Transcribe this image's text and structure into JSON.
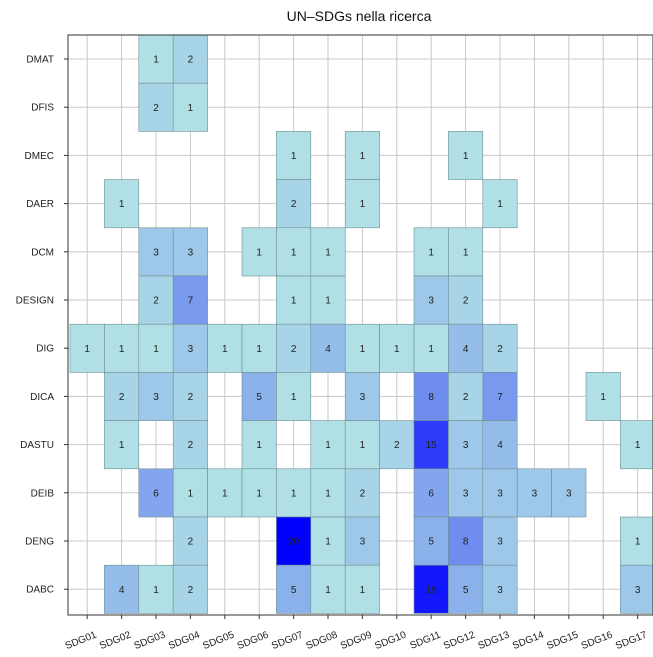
{
  "chart_data": {
    "type": "heatmap",
    "title": "UN–SDGs nella ricerca",
    "xlabel": "",
    "ylabel": "",
    "grid": true,
    "legend": "none",
    "x_categories": [
      "SDG01",
      "SDG02",
      "SDG03",
      "SDG04",
      "SDG05",
      "SDG06",
      "SDG07",
      "SDG08",
      "SDG09",
      "SDG10",
      "SDG11",
      "SDG12",
      "SDG13",
      "SDG14",
      "SDG15",
      "SDG16",
      "SDG17"
    ],
    "y_categories": [
      "DMAT",
      "DFIS",
      "DMEC",
      "DAER",
      "DCM",
      "DESIGN",
      "DIG",
      "DICA",
      "DASTU",
      "DEIB",
      "DENG",
      "DABC"
    ],
    "values": [
      [
        null,
        null,
        1,
        2,
        null,
        null,
        null,
        null,
        null,
        null,
        null,
        null,
        null,
        null,
        null,
        null,
        null
      ],
      [
        null,
        null,
        2,
        1,
        null,
        null,
        null,
        null,
        null,
        null,
        null,
        null,
        null,
        null,
        null,
        null,
        null
      ],
      [
        null,
        null,
        null,
        null,
        null,
        null,
        1,
        null,
        1,
        null,
        null,
        1,
        null,
        null,
        null,
        null,
        null
      ],
      [
        null,
        1,
        null,
        null,
        null,
        null,
        2,
        null,
        1,
        null,
        null,
        null,
        1,
        null,
        null,
        null,
        null
      ],
      [
        null,
        null,
        3,
        3,
        null,
        1,
        1,
        1,
        null,
        null,
        1,
        1,
        null,
        null,
        null,
        null,
        null
      ],
      [
        null,
        null,
        2,
        7,
        null,
        null,
        1,
        1,
        null,
        null,
        3,
        2,
        null,
        null,
        null,
        null,
        null
      ],
      [
        1,
        1,
        1,
        3,
        1,
        1,
        2,
        4,
        1,
        1,
        1,
        4,
        2,
        null,
        null,
        null,
        null
      ],
      [
        null,
        2,
        3,
        2,
        null,
        5,
        1,
        null,
        3,
        null,
        8,
        2,
        7,
        null,
        null,
        1,
        null
      ],
      [
        null,
        1,
        null,
        2,
        null,
        1,
        null,
        1,
        1,
        2,
        15,
        3,
        4,
        null,
        null,
        null,
        1
      ],
      [
        null,
        null,
        6,
        1,
        1,
        1,
        1,
        1,
        2,
        null,
        6,
        3,
        3,
        3,
        3,
        null,
        null
      ],
      [
        null,
        null,
        null,
        2,
        null,
        null,
        20,
        1,
        3,
        null,
        5,
        8,
        3,
        null,
        null,
        null,
        1
      ],
      [
        null,
        4,
        1,
        2,
        null,
        null,
        5,
        1,
        1,
        null,
        18,
        5,
        3,
        null,
        null,
        null,
        3
      ]
    ],
    "colors": {
      "low": "#b0e0e6",
      "high": "#0000ff",
      "grid": "#c8c8c8",
      "cell_border": "#6f8f93"
    }
  }
}
